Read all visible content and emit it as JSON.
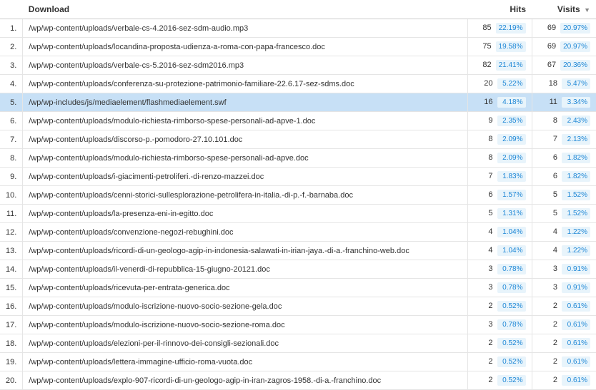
{
  "headers": {
    "download": "Download",
    "hits": "Hits",
    "visits": "Visits"
  },
  "colors": {
    "badge_bg": "#e8f4fb",
    "badge_text": "#1e87d6",
    "highlight_row_bg": "#c7e0f6"
  },
  "rows": [
    {
      "idx": "1.",
      "path": "/wp/wp-content/uploads/verbale-cs-4.2016-sez-sdm-audio.mp3",
      "hits": "85",
      "hits_pct": "22.19%",
      "visits": "69",
      "visits_pct": "20.97%",
      "highlight": false
    },
    {
      "idx": "2.",
      "path": "/wp/wp-content/uploads/locandina-proposta-udienza-a-roma-con-papa-francesco.doc",
      "hits": "75",
      "hits_pct": "19.58%",
      "visits": "69",
      "visits_pct": "20.97%",
      "highlight": false
    },
    {
      "idx": "3.",
      "path": "/wp/wp-content/uploads/verbale-cs-5.2016-sez-sdm2016.mp3",
      "hits": "82",
      "hits_pct": "21.41%",
      "visits": "67",
      "visits_pct": "20.36%",
      "highlight": false
    },
    {
      "idx": "4.",
      "path": "/wp/wp-content/uploads/conferenza-su-protezione-patrimonio-familiare-22.6.17-sez-sdms.doc",
      "hits": "20",
      "hits_pct": "5.22%",
      "visits": "18",
      "visits_pct": "5.47%",
      "highlight": false
    },
    {
      "idx": "5.",
      "path": "/wp/wp-includes/js/mediaelement/flashmediaelement.swf",
      "hits": "16",
      "hits_pct": "4.18%",
      "visits": "11",
      "visits_pct": "3.34%",
      "highlight": true
    },
    {
      "idx": "6.",
      "path": "/wp/wp-content/uploads/modulo-richiesta-rimborso-spese-personali-ad-apve-1.doc",
      "hits": "9",
      "hits_pct": "2.35%",
      "visits": "8",
      "visits_pct": "2.43%",
      "highlight": false
    },
    {
      "idx": "7.",
      "path": "/wp/wp-content/uploads/discorso-p.-pomodoro-27.10.101.doc",
      "hits": "8",
      "hits_pct": "2.09%",
      "visits": "7",
      "visits_pct": "2.13%",
      "highlight": false
    },
    {
      "idx": "8.",
      "path": "/wp/wp-content/uploads/modulo-richiesta-rimborso-spese-personali-ad-apve.doc",
      "hits": "8",
      "hits_pct": "2.09%",
      "visits": "6",
      "visits_pct": "1.82%",
      "highlight": false
    },
    {
      "idx": "9.",
      "path": "/wp/wp-content/uploads/i-giacimenti-petroliferi.-di-renzo-mazzei.doc",
      "hits": "7",
      "hits_pct": "1.83%",
      "visits": "6",
      "visits_pct": "1.82%",
      "highlight": false
    },
    {
      "idx": "10.",
      "path": "/wp/wp-content/uploads/cenni-storici-sullesplorazione-petrolifera-in-italia.-di-p.-f.-barnaba.doc",
      "hits": "6",
      "hits_pct": "1.57%",
      "visits": "5",
      "visits_pct": "1.52%",
      "highlight": false
    },
    {
      "idx": "11.",
      "path": "/wp/wp-content/uploads/la-presenza-eni-in-egitto.doc",
      "hits": "5",
      "hits_pct": "1.31%",
      "visits": "5",
      "visits_pct": "1.52%",
      "highlight": false
    },
    {
      "idx": "12.",
      "path": "/wp/wp-content/uploads/convenzione-negozi-rebughini.doc",
      "hits": "4",
      "hits_pct": "1.04%",
      "visits": "4",
      "visits_pct": "1.22%",
      "highlight": false
    },
    {
      "idx": "13.",
      "path": "/wp/wp-content/uploads/ricordi-di-un-geologo-agip-in-indonesia-salawati-in-irian-jaya.-di-a.-franchino-web.doc",
      "hits": "4",
      "hits_pct": "1.04%",
      "visits": "4",
      "visits_pct": "1.22%",
      "highlight": false
    },
    {
      "idx": "14.",
      "path": "/wp/wp-content/uploads/il-venerdi-di-repubblica-15-giugno-20121.doc",
      "hits": "3",
      "hits_pct": "0.78%",
      "visits": "3",
      "visits_pct": "0.91%",
      "highlight": false
    },
    {
      "idx": "15.",
      "path": "/wp/wp-content/uploads/ricevuta-per-entrata-generica.doc",
      "hits": "3",
      "hits_pct": "0.78%",
      "visits": "3",
      "visits_pct": "0.91%",
      "highlight": false
    },
    {
      "idx": "16.",
      "path": "/wp/wp-content/uploads/modulo-iscrizione-nuovo-socio-sezione-gela.doc",
      "hits": "2",
      "hits_pct": "0.52%",
      "visits": "2",
      "visits_pct": "0.61%",
      "highlight": false
    },
    {
      "idx": "17.",
      "path": "/wp/wp-content/uploads/modulo-iscrizione-nuovo-socio-sezione-roma.doc",
      "hits": "3",
      "hits_pct": "0.78%",
      "visits": "2",
      "visits_pct": "0.61%",
      "highlight": false
    },
    {
      "idx": "18.",
      "path": "/wp/wp-content/uploads/elezioni-per-il-rinnovo-dei-consigli-sezionali.doc",
      "hits": "2",
      "hits_pct": "0.52%",
      "visits": "2",
      "visits_pct": "0.61%",
      "highlight": false
    },
    {
      "idx": "19.",
      "path": "/wp/wp-content/uploads/lettera-immagine-ufficio-roma-vuota.doc",
      "hits": "2",
      "hits_pct": "0.52%",
      "visits": "2",
      "visits_pct": "0.61%",
      "highlight": false
    },
    {
      "idx": "20.",
      "path": "/wp/wp-content/uploads/explo-907-ricordi-di-un-geologo-agip-in-iran-zagros-1958.-di-a.-franchino.doc",
      "hits": "2",
      "hits_pct": "0.52%",
      "visits": "2",
      "visits_pct": "0.61%",
      "highlight": false
    }
  ]
}
